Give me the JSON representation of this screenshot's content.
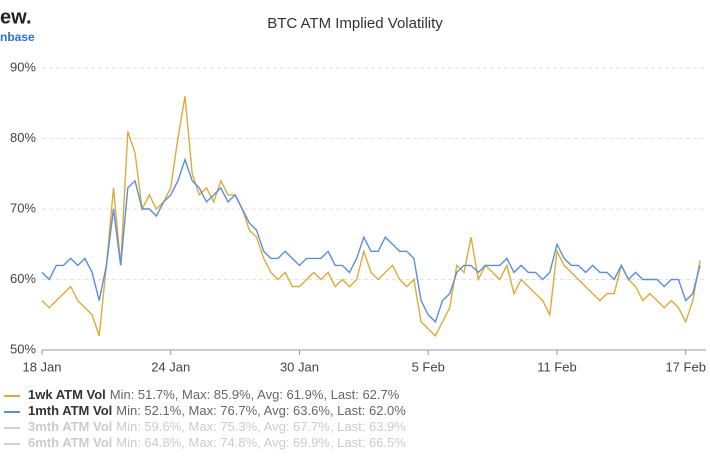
{
  "logo": [
    "ew.",
    "nbase"
  ],
  "chart_data": {
    "type": "line",
    "title": "BTC ATM Implied Volatility",
    "categories": [
      "18 Jan",
      null,
      null,
      null,
      null,
      null,
      null,
      null,
      null,
      null,
      null,
      null,
      null,
      null,
      null,
      null,
      null,
      null,
      "24 Jan",
      null,
      null,
      null,
      null,
      null,
      null,
      null,
      null,
      null,
      null,
      null,
      null,
      null,
      null,
      null,
      null,
      null,
      "30 Jan",
      null,
      null,
      null,
      null,
      null,
      null,
      null,
      null,
      null,
      null,
      null,
      null,
      null,
      null,
      null,
      null,
      null,
      "5 Feb",
      null,
      null,
      null,
      null,
      null,
      null,
      null,
      null,
      null,
      null,
      null,
      null,
      null,
      null,
      null,
      null,
      null,
      "11 Feb",
      null,
      null,
      null,
      null,
      null,
      null,
      null,
      null,
      null,
      null,
      null,
      null,
      null,
      null,
      null,
      null,
      null,
      "17 Feb",
      null,
      null
    ],
    "series": [
      {
        "name": "1wk ATM Vol",
        "stats": "Min: 51.7%, Max: 85.9%, Avg: 61.9%, Last: 62.7%",
        "color": "#e0aa3a",
        "values": [
          57,
          56,
          57,
          58,
          59,
          57,
          56,
          55,
          52,
          62,
          73,
          62,
          81,
          78,
          70,
          72,
          70,
          71,
          73,
          80,
          86,
          75,
          72,
          73,
          71,
          74,
          72,
          72,
          70,
          67,
          66,
          63,
          61,
          60,
          61,
          59,
          59,
          60,
          61,
          60,
          61,
          59,
          60,
          59,
          60,
          64,
          61,
          60,
          61,
          62,
          60,
          59,
          60,
          54,
          53,
          52,
          54,
          56,
          62,
          61,
          66,
          60,
          62,
          61,
          60,
          62,
          58,
          60,
          59,
          58,
          57,
          55,
          64,
          62,
          61,
          60,
          59,
          58,
          57,
          58,
          58,
          62,
          60,
          59,
          57,
          58,
          57,
          56,
          57,
          56,
          54,
          57,
          62.7
        ]
      },
      {
        "name": "1mth ATM Vol",
        "stats": "Min: 52.1%, Max: 76.7%, Avg: 63.6%, Last: 62.0%",
        "color": "#5b8fd6",
        "values": [
          61,
          60,
          62,
          62,
          63,
          62,
          63,
          61,
          57,
          62,
          70,
          62,
          73,
          74,
          70,
          70,
          69,
          71,
          72,
          74,
          77,
          74,
          73,
          71,
          72,
          73,
          71,
          72,
          70,
          68,
          67,
          64,
          63,
          63,
          64,
          63,
          62,
          63,
          63,
          63,
          64,
          62,
          62,
          61,
          63,
          66,
          64,
          64,
          66,
          65,
          64,
          64,
          63,
          57,
          55,
          54,
          57,
          58,
          61,
          62,
          62,
          61,
          62,
          62,
          62,
          63,
          61,
          62,
          61,
          61,
          60,
          61,
          65,
          63,
          62,
          62,
          61,
          62,
          61,
          61,
          60,
          62,
          60,
          61,
          60,
          60,
          60,
          59,
          60,
          60,
          57,
          58,
          62
        ]
      }
    ],
    "hidden_series": [
      {
        "name": "3mth ATM Vol",
        "stats": "Min: 59.6%, Max: 75.3%, Avg: 67.7%, Last: 63.9%",
        "color": "#d0d0d0"
      },
      {
        "name": "6mth ATM Vol",
        "stats": "Min: 64.8%, Max: 74.8%, Avg: 69.9%, Last: 66.5%",
        "color": "#d0d0d0"
      }
    ],
    "ylim": [
      50,
      90
    ],
    "yticks": [
      {
        "value": 50,
        "label": "50%"
      },
      {
        "value": 60,
        "label": "60%"
      },
      {
        "value": 70,
        "label": "70%"
      },
      {
        "value": 80,
        "label": "80%"
      },
      {
        "value": 90,
        "label": "90%"
      }
    ],
    "grid": true
  }
}
